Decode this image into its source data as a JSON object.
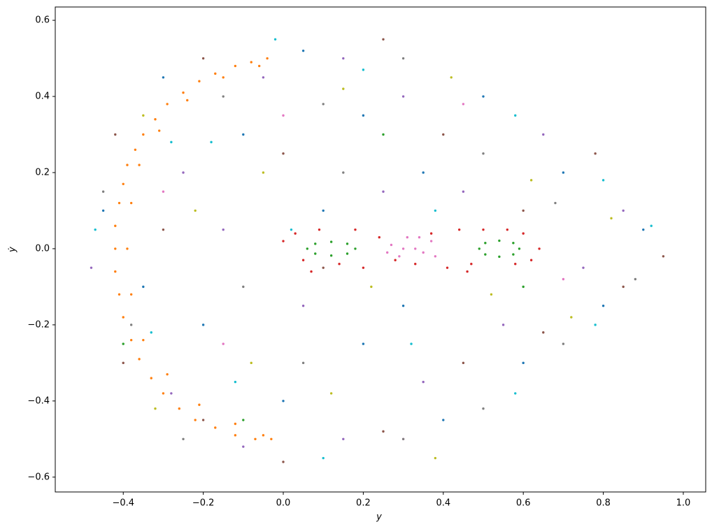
{
  "chart_data": {
    "type": "scatter",
    "xlabel": "y",
    "ylabel": "ẏ",
    "xlim": [
      -0.57,
      1.056
    ],
    "ylim": [
      -0.639,
      0.635
    ],
    "xticks": [
      {
        "value": -0.4,
        "label": "−0.4"
      },
      {
        "value": -0.2,
        "label": "−0.2"
      },
      {
        "value": 0,
        "label": "0.0"
      },
      0.2,
      0.4,
      0.6,
      0.8,
      {
        "value": 1,
        "label": "1.0"
      }
    ],
    "yticks": [
      {
        "value": -0.6,
        "label": "−0.6"
      },
      {
        "value": -0.4,
        "label": "−0.4"
      },
      {
        "value": -0.2,
        "label": "−0.2"
      },
      {
        "value": 0,
        "label": "0.0"
      },
      0.2,
      0.4,
      0.6
    ],
    "series": [
      {
        "color": "#1f77b4",
        "x": [
          -0.45,
          -0.3,
          -0.1,
          0.05,
          0.2,
          0.35,
          0.5,
          0.7,
          0.9,
          0.8,
          0.6,
          0.4,
          0.2,
          0.0,
          -0.2,
          -0.35,
          0.1,
          0.3
        ],
        "values": [
          0.1,
          0.45,
          0.3,
          0.52,
          0.35,
          0.2,
          0.4,
          0.2,
          0.05,
          -0.15,
          -0.3,
          -0.45,
          -0.25,
          -0.4,
          -0.2,
          -0.1,
          0.1,
          -0.15
        ]
      },
      {
        "color": "#ff7f0e",
        "x": [
          -0.04,
          -0.08,
          -0.12,
          -0.17,
          -0.21,
          -0.25,
          -0.29,
          -0.32,
          -0.35,
          -0.37,
          -0.39,
          -0.4,
          -0.41,
          -0.42,
          -0.42,
          -0.42,
          -0.41,
          -0.4,
          -0.38,
          -0.36,
          -0.33,
          -0.3,
          -0.26,
          -0.22,
          -0.17,
          -0.12,
          -0.07,
          -0.03,
          -0.06,
          -0.15,
          -0.24,
          -0.31,
          -0.36,
          -0.38,
          -0.39,
          -0.38,
          -0.35,
          -0.29,
          -0.21,
          -0.12,
          -0.05
        ],
        "values": [
          0.5,
          0.49,
          0.48,
          0.46,
          0.44,
          0.41,
          0.38,
          0.34,
          0.3,
          0.26,
          0.22,
          0.17,
          0.12,
          0.06,
          0.0,
          -0.06,
          -0.12,
          -0.18,
          -0.24,
          -0.29,
          -0.34,
          -0.38,
          -0.42,
          -0.45,
          -0.47,
          -0.49,
          -0.5,
          -0.5,
          0.48,
          0.45,
          0.39,
          0.31,
          0.22,
          0.12,
          0.0,
          -0.12,
          -0.24,
          -0.33,
          -0.41,
          -0.46,
          -0.49
        ]
      },
      {
        "color": "#2ca02c",
        "x": [
          0.06,
          0.08,
          0.12,
          0.16,
          0.18,
          0.16,
          0.12,
          0.08,
          0.49,
          0.505,
          0.54,
          0.575,
          0.59,
          0.575,
          0.54,
          0.505,
          -0.4,
          0.25,
          0.6,
          -0.1
        ],
        "values": [
          0,
          0.013,
          0.018,
          0.013,
          0,
          -0.013,
          -0.018,
          -0.013,
          0,
          0.015,
          0.021,
          0.015,
          0,
          -0.015,
          -0.021,
          -0.015,
          -0.25,
          0.3,
          -0.1,
          -0.45
        ]
      },
      {
        "color": "#d62728",
        "x": [
          0.0,
          0.03,
          0.05,
          0.09,
          0.14,
          0.18,
          0.2,
          0.24,
          0.28,
          0.33,
          0.37,
          0.41,
          0.44,
          0.47,
          0.5,
          0.56,
          0.6,
          0.62,
          0.64,
          0.58,
          0.46,
          0.07
        ],
        "values": [
          0.02,
          0.04,
          -0.03,
          0.05,
          -0.04,
          0.05,
          -0.05,
          0.03,
          -0.03,
          -0.04,
          0.04,
          -0.05,
          0.05,
          -0.04,
          0.05,
          0.05,
          0.04,
          -0.03,
          0.0,
          -0.04,
          -0.06,
          -0.06
        ]
      },
      {
        "color": "#9467bd",
        "x": [
          -0.48,
          -0.25,
          -0.05,
          0.15,
          0.3,
          0.45,
          0.65,
          0.85,
          0.75,
          0.55,
          0.35,
          0.15,
          -0.1,
          -0.28,
          -0.15,
          0.05,
          0.25
        ],
        "values": [
          -0.05,
          0.2,
          0.45,
          0.5,
          0.4,
          0.15,
          0.3,
          0.1,
          -0.05,
          -0.2,
          -0.35,
          -0.5,
          -0.52,
          -0.38,
          0.05,
          -0.15,
          0.15
        ]
      },
      {
        "color": "#8c564b",
        "x": [
          -0.42,
          -0.2,
          0.0,
          0.25,
          0.4,
          0.6,
          0.78,
          0.95,
          0.85,
          0.65,
          0.45,
          0.25,
          0.0,
          -0.2,
          -0.4,
          -0.3,
          0.1
        ],
        "values": [
          0.3,
          0.5,
          0.25,
          0.55,
          0.3,
          0.1,
          0.25,
          -0.02,
          -0.1,
          -0.22,
          -0.3,
          -0.48,
          -0.56,
          -0.45,
          -0.3,
          0.05,
          -0.05
        ]
      },
      {
        "color": "#e377c2",
        "x": [
          0.27,
          0.29,
          0.31,
          0.33,
          0.35,
          0.37,
          0.3,
          0.34,
          0.38,
          0.26,
          -0.3,
          0.0,
          0.45,
          0.7,
          0.3,
          -0.15
        ],
        "values": [
          0.01,
          -0.02,
          0.03,
          0.0,
          -0.01,
          0.02,
          0.0,
          0.03,
          -0.02,
          -0.01,
          0.15,
          0.35,
          0.38,
          -0.08,
          -0.5,
          -0.25
        ]
      },
      {
        "color": "#7f7f7f",
        "x": [
          -0.38,
          -0.15,
          0.1,
          0.3,
          0.5,
          0.68,
          0.88,
          0.7,
          0.5,
          0.3,
          0.05,
          -0.1,
          -0.25,
          0.15,
          -0.45
        ],
        "values": [
          -0.2,
          0.4,
          0.38,
          0.5,
          0.25,
          0.12,
          -0.08,
          -0.25,
          -0.42,
          -0.5,
          -0.3,
          -0.1,
          -0.5,
          0.2,
          0.15
        ]
      },
      {
        "color": "#bcbd22",
        "x": [
          -0.35,
          -0.05,
          0.15,
          0.42,
          0.62,
          0.82,
          0.72,
          0.52,
          0.38,
          0.12,
          -0.08,
          -0.32,
          -0.22,
          0.22
        ],
        "values": [
          0.35,
          0.2,
          0.42,
          0.45,
          0.18,
          0.08,
          -0.18,
          -0.12,
          -0.55,
          -0.38,
          -0.3,
          -0.42,
          0.1,
          -0.1
        ]
      },
      {
        "color": "#17becf",
        "x": [
          -0.47,
          -0.28,
          -0.02,
          0.2,
          0.38,
          0.58,
          0.8,
          0.92,
          0.78,
          0.58,
          0.32,
          0.1,
          -0.12,
          -0.33,
          -0.18,
          0.02
        ],
        "values": [
          0.05,
          0.28,
          0.55,
          0.47,
          0.1,
          0.35,
          0.18,
          0.06,
          -0.2,
          -0.38,
          -0.25,
          -0.55,
          -0.35,
          -0.22,
          0.28,
          0.05
        ]
      }
    ]
  }
}
